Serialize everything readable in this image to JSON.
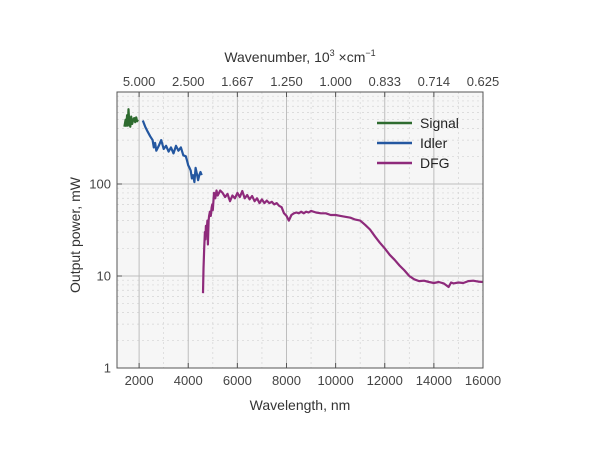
{
  "chart_data": {
    "type": "line",
    "title": "",
    "xlabel": "Wavelength, nm",
    "ylabel": "Output power, mW",
    "x2label_main": "Wavenumber, 10",
    "x2label_sup": "3",
    "x2label_unit": " ×cm",
    "x2label_unit_sup": "−1",
    "xlim": [
      1100,
      16000
    ],
    "ylim": [
      1,
      1000
    ],
    "yscale": "log",
    "grid": true,
    "legend_position": "top-right",
    "x_ticks": [
      2000,
      4000,
      6000,
      8000,
      10000,
      12000,
      14000,
      16000
    ],
    "x_tick_labels": [
      "2000",
      "4000",
      "6000",
      "8000",
      "10000",
      "12000",
      "14000",
      "16000"
    ],
    "y_ticks": [
      1,
      10,
      100
    ],
    "y_tick_labels": [
      "1",
      "10",
      "100"
    ],
    "x2_tick_positions": [
      2000,
      4000,
      6000,
      8000,
      10000,
      12000,
      14000,
      16000
    ],
    "x2_tick_labels": [
      "5.000",
      "2.500",
      "1.667",
      "1.250",
      "1.000",
      "0.833",
      "0.714",
      "0.625"
    ],
    "series": [
      {
        "name": "Signal",
        "color": "#2e6b2f",
        "points": [
          [
            1400,
            420
          ],
          [
            1450,
            500
          ],
          [
            1480,
            430
          ],
          [
            1510,
            560
          ],
          [
            1540,
            430
          ],
          [
            1570,
            650
          ],
          [
            1600,
            460
          ],
          [
            1640,
            420
          ],
          [
            1680,
            540
          ],
          [
            1720,
            450
          ],
          [
            1760,
            500
          ],
          [
            1800,
            520
          ],
          [
            1840,
            470
          ],
          [
            1880,
            530
          ],
          [
            1920,
            480
          ],
          [
            1950,
            500
          ]
        ]
      },
      {
        "name": "Idler",
        "color": "#2457a0",
        "points": [
          [
            2150,
            490
          ],
          [
            2250,
            420
          ],
          [
            2350,
            370
          ],
          [
            2450,
            330
          ],
          [
            2550,
            300
          ],
          [
            2600,
            250
          ],
          [
            2650,
            280
          ],
          [
            2700,
            230
          ],
          [
            2800,
            260
          ],
          [
            2900,
            300
          ],
          [
            3000,
            240
          ],
          [
            3100,
            260
          ],
          [
            3200,
            225
          ],
          [
            3300,
            250
          ],
          [
            3400,
            215
          ],
          [
            3500,
            260
          ],
          [
            3600,
            230
          ],
          [
            3700,
            250
          ],
          [
            3800,
            205
          ],
          [
            3900,
            200
          ],
          [
            3950,
            180
          ],
          [
            4000,
            160
          ],
          [
            4050,
            150
          ],
          [
            4100,
            140
          ],
          [
            4150,
            115
          ],
          [
            4200,
            125
          ],
          [
            4250,
            105
          ],
          [
            4300,
            150
          ],
          [
            4350,
            130
          ],
          [
            4400,
            110
          ],
          [
            4450,
            125
          ],
          [
            4500,
            135
          ],
          [
            4550,
            125
          ]
        ]
      },
      {
        "name": "DFG",
        "color": "#8e2a7b",
        "points": [
          [
            4600,
            6.5
          ],
          [
            4620,
            12
          ],
          [
            4650,
            20
          ],
          [
            4680,
            30
          ],
          [
            4700,
            25
          ],
          [
            4720,
            35
          ],
          [
            4750,
            30
          ],
          [
            4780,
            40
          ],
          [
            4800,
            22
          ],
          [
            4830,
            40
          ],
          [
            4850,
            45
          ],
          [
            4880,
            50
          ],
          [
            4920,
            45
          ],
          [
            4950,
            55
          ],
          [
            4980,
            60
          ],
          [
            5000,
            52
          ],
          [
            5050,
            80
          ],
          [
            5100,
            70
          ],
          [
            5150,
            85
          ],
          [
            5200,
            75
          ],
          [
            5300,
            85
          ],
          [
            5400,
            80
          ],
          [
            5500,
            72
          ],
          [
            5600,
            78
          ],
          [
            5700,
            65
          ],
          [
            5800,
            75
          ],
          [
            5900,
            70
          ],
          [
            6000,
            80
          ],
          [
            6100,
            72
          ],
          [
            6200,
            84
          ],
          [
            6300,
            70
          ],
          [
            6400,
            76
          ],
          [
            6500,
            68
          ],
          [
            6600,
            74
          ],
          [
            6700,
            65
          ],
          [
            6800,
            70
          ],
          [
            6900,
            62
          ],
          [
            7000,
            68
          ],
          [
            7100,
            62
          ],
          [
            7200,
            66
          ],
          [
            7300,
            62
          ],
          [
            7400,
            64
          ],
          [
            7500,
            60
          ],
          [
            7600,
            62
          ],
          [
            7700,
            58
          ],
          [
            7800,
            56
          ],
          [
            7900,
            48
          ],
          [
            8000,
            45
          ],
          [
            8100,
            40
          ],
          [
            8200,
            46
          ],
          [
            8300,
            48
          ],
          [
            8400,
            49
          ],
          [
            8500,
            48
          ],
          [
            8600,
            50
          ],
          [
            8700,
            48
          ],
          [
            8800,
            50
          ],
          [
            8900,
            49
          ],
          [
            9000,
            51
          ],
          [
            9200,
            49
          ],
          [
            9400,
            48
          ],
          [
            9600,
            48
          ],
          [
            9800,
            46
          ],
          [
            10000,
            46
          ],
          [
            10200,
            45
          ],
          [
            10400,
            44
          ],
          [
            10600,
            43
          ],
          [
            10800,
            41
          ],
          [
            11000,
            40
          ],
          [
            11200,
            36
          ],
          [
            11400,
            32
          ],
          [
            11600,
            27
          ],
          [
            11800,
            23
          ],
          [
            12000,
            20
          ],
          [
            12200,
            17
          ],
          [
            12400,
            15
          ],
          [
            12600,
            13
          ],
          [
            12800,
            11.5
          ],
          [
            13000,
            10
          ],
          [
            13200,
            9.2
          ],
          [
            13400,
            8.8
          ],
          [
            13600,
            8.9
          ],
          [
            13800,
            8.6
          ],
          [
            14000,
            8.4
          ],
          [
            14200,
            8.6
          ],
          [
            14400,
            8.3
          ],
          [
            14600,
            7.6
          ],
          [
            14700,
            8.5
          ],
          [
            14800,
            8.3
          ],
          [
            15000,
            8.5
          ],
          [
            15200,
            8.4
          ],
          [
            15400,
            8.8
          ],
          [
            15600,
            8.9
          ],
          [
            15800,
            8.7
          ],
          [
            16000,
            8.6
          ]
        ]
      }
    ]
  }
}
